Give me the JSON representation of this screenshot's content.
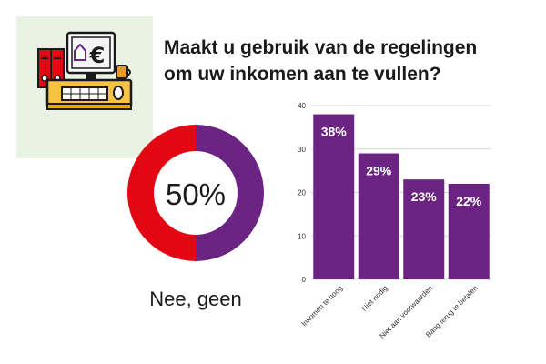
{
  "title": {
    "line1": "Maakt u gebruik van de regelingen",
    "line2": "om uw inkomen aan te vullen?"
  },
  "illustration": {
    "currency_symbol": "€",
    "icon": "office-desk-computer-icon"
  },
  "donut": {
    "value_label": "50%",
    "caption": "Nee, geen",
    "segments": [
      {
        "value": 50,
        "color": "#6b2482"
      },
      {
        "value": 50,
        "color": "#e30613"
      }
    ]
  },
  "chart_data": {
    "type": "bar",
    "categories": [
      "Inkomen te hoog",
      "Niet nodig",
      "Niet aan voorwaarden",
      "Bang terug te betalen"
    ],
    "values": [
      38,
      29,
      23,
      22
    ],
    "value_labels": [
      "38%",
      "29%",
      "23%",
      "22%"
    ],
    "ylim": [
      0,
      40
    ],
    "yticks": [
      0,
      10,
      20,
      30,
      40
    ],
    "grid": true,
    "bar_color": "#6b2482"
  }
}
